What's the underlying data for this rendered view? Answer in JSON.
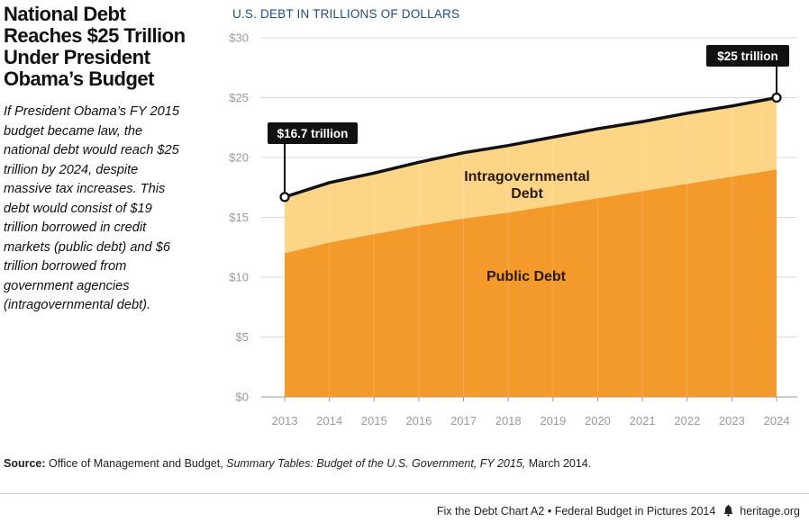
{
  "title_lines": [
    "National Debt",
    "Reaches $25 Trillion",
    "Under President",
    "Obama’s Budget"
  ],
  "description_lines": [
    "If President Obama’s FY 2015",
    "budget became law, the",
    "national debt would reach $25",
    "trillion by 2024, despite",
    "massive tax increases. This",
    "debt would consist of $19",
    "trillion borrowed in credit",
    "markets (public debt) and $6",
    "trillion borrowed from",
    "government agencies",
    "(intragovernmental debt)."
  ],
  "chart_data": {
    "type": "area",
    "title": "U.S. DEBT IN TRILLIONS OF DOLLARS",
    "x": [
      2013,
      2014,
      2015,
      2016,
      2017,
      2018,
      2019,
      2020,
      2021,
      2022,
      2023,
      2024
    ],
    "series": [
      {
        "name": "Public Debt",
        "values": [
          12.0,
          12.9,
          13.6,
          14.3,
          14.9,
          15.4,
          16.0,
          16.6,
          17.2,
          17.8,
          18.4,
          19.0
        ],
        "color": "#f39a2a"
      },
      {
        "name": "Intragovernmental Debt",
        "values": [
          4.7,
          5.0,
          5.1,
          5.3,
          5.5,
          5.6,
          5.7,
          5.8,
          5.8,
          5.9,
          5.9,
          6.0
        ],
        "color": "#fdd587"
      }
    ],
    "total_line_color": "#111111",
    "yticks": [
      "$0",
      "$5",
      "$10",
      "$15",
      "$20",
      "$25",
      "$30"
    ],
    "ylim": [
      0,
      30
    ],
    "grid": true,
    "annotations": [
      {
        "text": "$16.7 trillion",
        "x": 2013,
        "y": 16.7
      },
      {
        "text": "$25 trillion",
        "x": 2024,
        "y": 25.0
      }
    ]
  },
  "source": {
    "label": "Source:",
    "text_plain": " Office of Management and Budget, ",
    "text_italic": "Summary Tables: Budget of the U.S. Government, FY 2015,",
    "text_end": " March 2014."
  },
  "footer": {
    "chart_id": "Fix the Debt Chart A2",
    "separator": "•",
    "publication": "Federal Budget in Pictures 2014",
    "site": "heritage.org"
  }
}
